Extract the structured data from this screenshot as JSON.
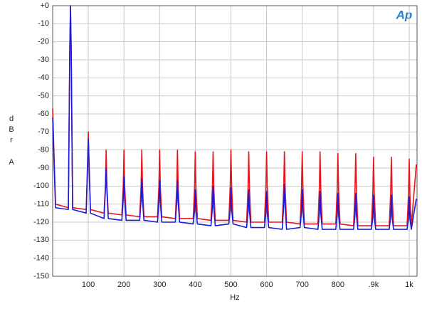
{
  "chart_data": {
    "type": "line",
    "ylabel": "dBr",
    "ylabel_unit": "A",
    "xlabel": "Hz",
    "logo": "Ap",
    "xlim": [
      0,
      1022
    ],
    "ylim": [
      -150,
      0
    ],
    "xticks": [
      100,
      200,
      300,
      400,
      500,
      600,
      700,
      800,
      {
        "value": 900,
        "label": ".9k"
      },
      {
        "value": 1000,
        "label": "1k"
      }
    ],
    "yticks": [
      {
        "value": 0,
        "label": "+0"
      },
      -10,
      -20,
      -30,
      -40,
      -50,
      -60,
      -70,
      -80,
      -90,
      -100,
      -110,
      -120,
      -130,
      -140,
      -150
    ],
    "grid": true,
    "x": [
      0,
      8,
      44,
      48,
      50,
      52,
      56,
      94,
      98,
      100,
      102,
      106,
      144,
      148,
      150,
      152,
      156,
      194,
      198,
      200,
      202,
      206,
      244,
      248,
      250,
      252,
      256,
      294,
      298,
      300,
      302,
      306,
      344,
      348,
      350,
      352,
      356,
      394,
      398,
      400,
      402,
      406,
      444,
      448,
      450,
      452,
      456,
      494,
      498,
      500,
      502,
      506,
      544,
      548,
      550,
      552,
      556,
      594,
      598,
      600,
      602,
      606,
      644,
      648,
      650,
      652,
      656,
      694,
      698,
      700,
      702,
      706,
      744,
      748,
      750,
      752,
      756,
      794,
      798,
      800,
      802,
      806,
      844,
      848,
      850,
      852,
      856,
      894,
      898,
      900,
      902,
      906,
      944,
      948,
      950,
      952,
      956,
      994,
      998,
      1000,
      1002,
      1006,
      1020
    ],
    "series": [
      {
        "name": "Red",
        "color": "#e8161c",
        "values": [
          -57,
          -110,
          -112,
          -25,
          0,
          -25,
          -112,
          -113,
          -90,
          -70,
          -90,
          -113,
          -115,
          -100,
          -80,
          -100,
          -115,
          -116,
          -100,
          -80,
          -100,
          -116,
          -117,
          -100,
          -80,
          -100,
          -117,
          -117,
          -100,
          -80,
          -100,
          -117,
          -118,
          -100,
          -80,
          -100,
          -118,
          -118,
          -101,
          -81,
          -101,
          -118,
          -119,
          -101,
          -81,
          -101,
          -119,
          -119,
          -100,
          -80,
          -100,
          -119,
          -120,
          -101,
          -81,
          -101,
          -120,
          -120,
          -101,
          -81,
          -101,
          -120,
          -120,
          -101,
          -81,
          -101,
          -120,
          -121,
          -101,
          -81,
          -101,
          -121,
          -121,
          -101,
          -81,
          -101,
          -121,
          -121,
          -102,
          -82,
          -102,
          -121,
          -122,
          -102,
          -82,
          -102,
          -122,
          -122,
          -104,
          -84,
          -104,
          -122,
          -122,
          -104,
          -84,
          -104,
          -122,
          -122,
          -105,
          -85,
          -105,
          -122,
          -88
        ]
      },
      {
        "name": "Blue",
        "color": "#1a1adc",
        "values": [
          -62,
          -112,
          -113,
          -25,
          0,
          -25,
          -113,
          -115,
          -86,
          -74,
          -86,
          -115,
          -118,
          -102,
          -90,
          -102,
          -118,
          -119,
          -107,
          -95,
          -107,
          -119,
          -119,
          -108,
          -96,
          -108,
          -119,
          -120,
          -109,
          -97,
          -109,
          -120,
          -120,
          -109,
          -97,
          -109,
          -120,
          -121,
          -114,
          -102,
          -114,
          -121,
          -122,
          -112,
          -100,
          -112,
          -122,
          -121,
          -113,
          -101,
          -113,
          -121,
          -123,
          -114,
          -102,
          -114,
          -123,
          -123,
          -115,
          -103,
          -115,
          -123,
          -124,
          -111,
          -99,
          -111,
          -124,
          -123,
          -114,
          -102,
          -114,
          -123,
          -124,
          -115,
          -103,
          -115,
          -124,
          -124,
          -116,
          -104,
          -116,
          -124,
          -124,
          -116,
          -104,
          -116,
          -124,
          -124,
          -117,
          -105,
          -117,
          -124,
          -124,
          -117,
          -105,
          -117,
          -124,
          -124,
          -118,
          -106,
          -118,
          -124,
          -107
        ]
      }
    ]
  }
}
